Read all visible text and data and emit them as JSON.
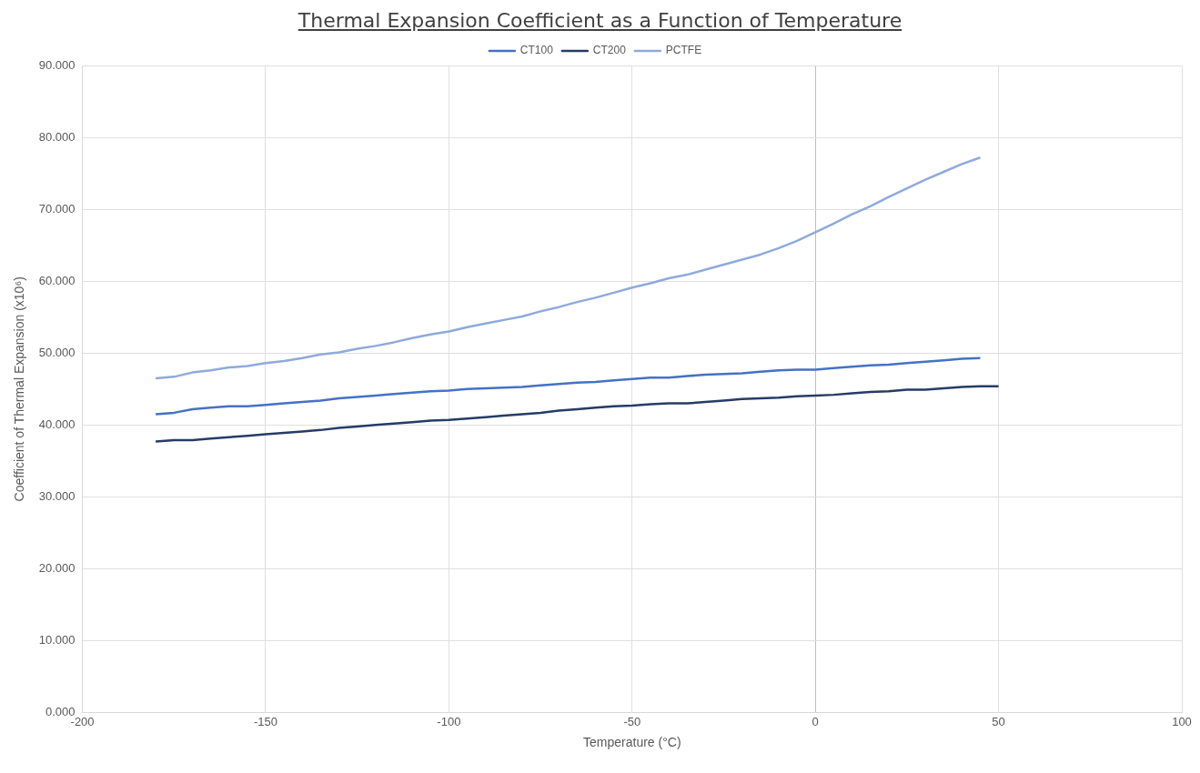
{
  "chart_data": {
    "type": "line",
    "title": "Thermal Expansion Coefficient as a Function of Temperature",
    "xlabel": "Temperature (°C)",
    "ylabel": "Coefficient of Thermal Expansion (x10⁶)",
    "xlim": [
      -200,
      100
    ],
    "xticks": [
      -200,
      -150,
      -100,
      -50,
      0,
      50,
      100
    ],
    "ylim": [
      0,
      90
    ],
    "yticks": [
      {
        "value": 0,
        "label": "0.000"
      },
      {
        "value": 10,
        "label": "10.000"
      },
      {
        "value": 20,
        "label": "20.000"
      },
      {
        "value": 30,
        "label": "30.000"
      },
      {
        "value": 40,
        "label": "40.000"
      },
      {
        "value": 50,
        "label": "50.000"
      },
      {
        "value": 60,
        "label": "60.000"
      },
      {
        "value": 70,
        "label": "70.000"
      },
      {
        "value": 80,
        "label": "80.000"
      },
      {
        "value": 90,
        "label": "90.000"
      }
    ],
    "grid": true,
    "legend": "top",
    "marker": "none",
    "line_style": "solid",
    "series": [
      {
        "name": "CT100",
        "color": "#4472c4",
        "x": [
          -180,
          -175,
          -170,
          -165,
          -160,
          -155,
          -150,
          -145,
          -140,
          -135,
          -130,
          -125,
          -120,
          -115,
          -110,
          -105,
          -100,
          -95,
          -90,
          -85,
          -80,
          -75,
          -70,
          -65,
          -60,
          -55,
          -50,
          -45,
          -40,
          -35,
          -30,
          -25,
          -20,
          -15,
          -10,
          -5,
          0,
          5,
          10,
          15,
          20,
          25,
          30,
          35,
          40,
          45
        ],
        "values": [
          41.5,
          41.7,
          42.2,
          42.4,
          42.6,
          42.6,
          42.8,
          43.0,
          43.2,
          43.4,
          43.7,
          43.9,
          44.1,
          44.3,
          44.5,
          44.7,
          44.8,
          45.0,
          45.1,
          45.2,
          45.3,
          45.5,
          45.7,
          45.9,
          46.0,
          46.2,
          46.4,
          46.6,
          46.6,
          46.8,
          47.0,
          47.1,
          47.2,
          47.4,
          47.6,
          47.7,
          47.7,
          47.9,
          48.1,
          48.3,
          48.4,
          48.6,
          48.8,
          49.0,
          49.2,
          49.3
        ]
      },
      {
        "name": "CT200",
        "color": "#263c66",
        "x": [
          -180,
          -175,
          -170,
          -165,
          -160,
          -155,
          -150,
          -145,
          -140,
          -135,
          -130,
          -125,
          -120,
          -115,
          -110,
          -105,
          -100,
          -95,
          -90,
          -85,
          -80,
          -75,
          -70,
          -65,
          -60,
          -55,
          -50,
          -45,
          -40,
          -35,
          -30,
          -25,
          -20,
          -15,
          -10,
          -5,
          0,
          5,
          10,
          15,
          20,
          25,
          30,
          35,
          40,
          45,
          50
        ],
        "values": [
          37.7,
          37.9,
          37.9,
          38.1,
          38.3,
          38.5,
          38.7,
          38.9,
          39.1,
          39.3,
          39.6,
          39.8,
          40.0,
          40.2,
          40.4,
          40.6,
          40.7,
          40.9,
          41.1,
          41.3,
          41.5,
          41.7,
          42.0,
          42.2,
          42.4,
          42.6,
          42.7,
          42.9,
          43.0,
          43.0,
          43.2,
          43.4,
          43.6,
          43.7,
          43.8,
          44.0,
          44.1,
          44.2,
          44.4,
          44.6,
          44.7,
          44.9,
          44.9,
          45.1,
          45.3,
          45.4,
          45.4
        ]
      },
      {
        "name": "PCTFE",
        "color": "#8faadc",
        "x": [
          -180,
          -175,
          -170,
          -165,
          -160,
          -155,
          -150,
          -145,
          -140,
          -135,
          -130,
          -125,
          -120,
          -115,
          -110,
          -105,
          -100,
          -95,
          -90,
          -85,
          -80,
          -75,
          -70,
          -65,
          -60,
          -55,
          -50,
          -45,
          -40,
          -35,
          -30,
          -25,
          -20,
          -15,
          -10,
          -5,
          0,
          5,
          10,
          15,
          20,
          25,
          30,
          35,
          40,
          45
        ],
        "values": [
          46.5,
          46.7,
          47.3,
          47.6,
          48.0,
          48.2,
          48.6,
          48.9,
          49.3,
          49.8,
          50.1,
          50.6,
          51.0,
          51.5,
          52.1,
          52.6,
          53.0,
          53.6,
          54.1,
          54.6,
          55.1,
          55.8,
          56.4,
          57.1,
          57.7,
          58.4,
          59.1,
          59.7,
          60.4,
          60.9,
          61.6,
          62.3,
          63.0,
          63.7,
          64.6,
          65.6,
          66.8,
          68.0,
          69.3,
          70.4,
          71.7,
          72.9,
          74.1,
          75.2,
          76.3,
          77.2
        ]
      }
    ]
  }
}
